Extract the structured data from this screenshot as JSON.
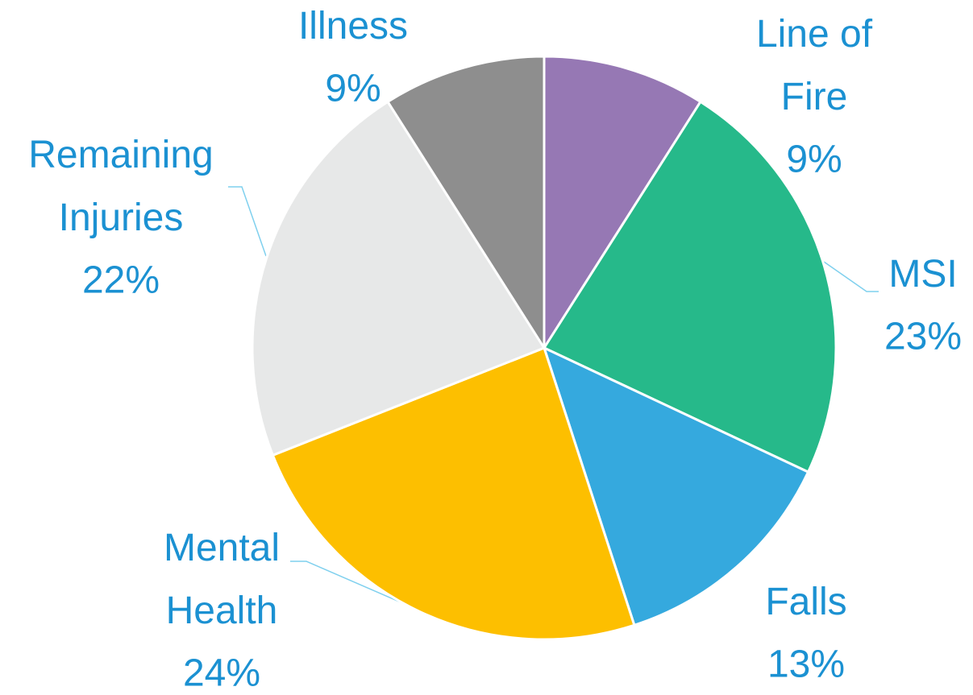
{
  "chart_data": {
    "type": "pie",
    "categories": [
      "Line of Fire",
      "MSI",
      "Falls",
      "Mental Health",
      "Remaining Injuries",
      "Illness"
    ],
    "values": [
      9,
      23,
      13,
      24,
      22,
      9
    ],
    "value_labels": [
      "9%",
      "23%",
      "13%",
      "24%",
      "22%",
      "9%"
    ],
    "colors": [
      "#9678b4",
      "#26b98a",
      "#35a9de",
      "#fdbf00",
      "#e7e8e8",
      "#8e8e8e"
    ]
  }
}
